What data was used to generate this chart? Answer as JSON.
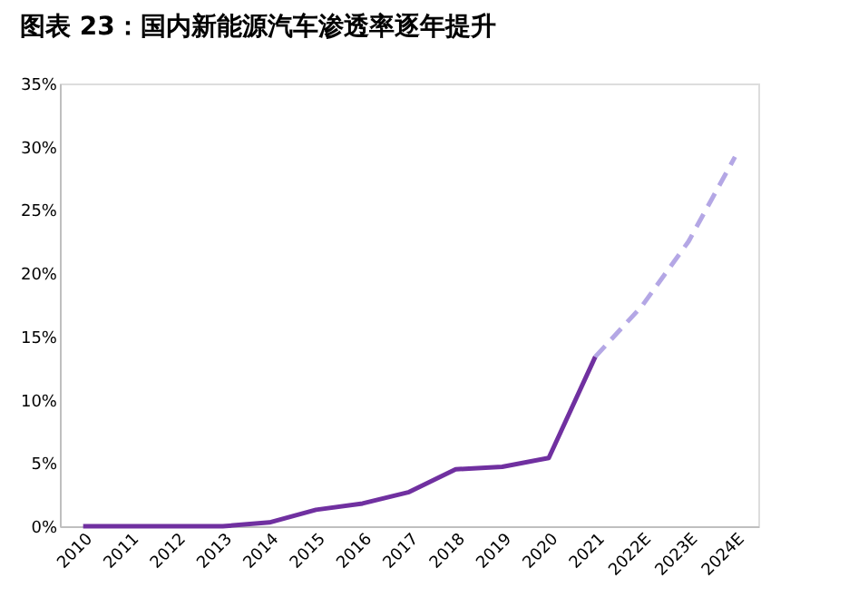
{
  "chart_data": {
    "type": "line",
    "title": "图表 23：国内新能源汽车渗透率逐年提升",
    "categories": [
      "2010",
      "2011",
      "2012",
      "2013",
      "2014",
      "2015",
      "2016",
      "2017",
      "2018",
      "2019",
      "2020",
      "2021",
      "2022E",
      "2023E",
      "2024E"
    ],
    "series": [
      {
        "color": "#7030a0",
        "line_style": "solid",
        "values": [
          0,
          0,
          0,
          0,
          0.3,
          1.3,
          1.8,
          2.7,
          4.5,
          4.7,
          5.4,
          13.4,
          null,
          null,
          null
        ]
      },
      {
        "color": "#b4a7e5",
        "line_style": "dashed",
        "values": [
          null,
          null,
          null,
          null,
          null,
          null,
          null,
          null,
          null,
          null,
          null,
          13.4,
          17.4,
          22.5,
          29.2
        ]
      }
    ],
    "ylim": [
      0,
      35
    ],
    "yticks": [
      {
        "value": 0,
        "label": "0%"
      },
      {
        "value": 5,
        "label": "5%"
      },
      {
        "value": 10,
        "label": "10%"
      },
      {
        "value": 15,
        "label": "15%"
      },
      {
        "value": 20,
        "label": "20%"
      },
      {
        "value": 25,
        "label": "25%"
      },
      {
        "value": 30,
        "label": "30%"
      },
      {
        "value": 35,
        "label": "35%"
      }
    ],
    "grid": false,
    "marker": "none"
  }
}
